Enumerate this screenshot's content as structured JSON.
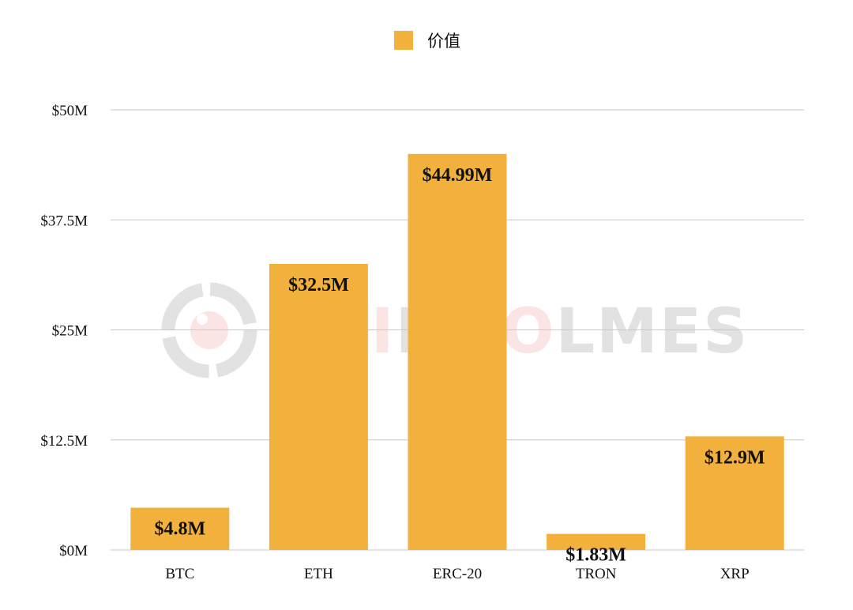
{
  "legend": {
    "label": "价值",
    "color": "#F2B03C"
  },
  "watermark": {
    "text_prefix": "CO",
    "text_accent": "I",
    "text_mid": "NH",
    "text_accent2": "O",
    "text_suffix": "LMES",
    "logo_icon": "coinholmes-logo-icon"
  },
  "chart_data": {
    "type": "bar",
    "categories": [
      "BTC",
      "ETH",
      "ERC-20",
      "TRON",
      "XRP"
    ],
    "series": [
      {
        "name": "价值",
        "values": [
          4.8,
          32.5,
          44.99,
          1.83,
          12.9
        ],
        "data_labels": [
          "$4.8M",
          "$32.5M",
          "$44.99M",
          "$1.83M",
          "$12.9M"
        ],
        "color": "#F2B03C"
      }
    ],
    "y_ticks": [
      0,
      12.5,
      25,
      37.5,
      50
    ],
    "y_tick_labels": [
      "$0M",
      "$12.5M",
      "$25M",
      "$37.5M",
      "$50M"
    ],
    "ylim": [
      0,
      50
    ],
    "title": "",
    "xlabel": "",
    "ylabel": "",
    "grid": true,
    "legend_position": "top-center"
  }
}
